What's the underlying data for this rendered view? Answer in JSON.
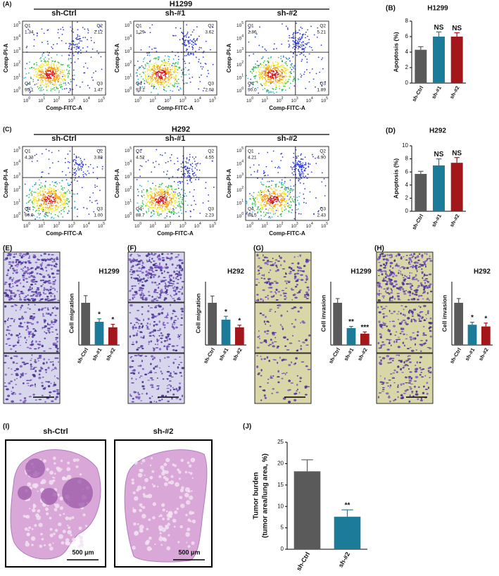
{
  "flow_panels": [
    {
      "panel": "(A)",
      "title": "H1299",
      "x_label": "Comp-FITC-A",
      "y_label": "Comp-PI-A",
      "tick_base": "10",
      "tick_exponents": [
        0,
        1,
        2,
        3,
        4,
        5
      ],
      "quadrant_names": [
        "Q1",
        "Q2",
        "Q3",
        "Q4"
      ],
      "plots": [
        {
          "title": "sh-Ctrl",
          "quadrants": [
            "1.34",
            "2.12",
            "1.47",
            "95.1"
          ]
        },
        {
          "title": "sh-#1",
          "quadrants": [
            "1.29",
            "3.62",
            "2.03",
            "93.1"
          ]
        },
        {
          "title": "sh-#2",
          "quadrants": [
            "2.86",
            "5.21",
            "1.89",
            "90.0"
          ]
        }
      ]
    },
    {
      "panel": "(C)",
      "title": "H292",
      "x_label": "Comp-FITC-A",
      "y_label": "Comp-PI-A",
      "tick_base": "10",
      "tick_exponents": [
        0,
        1,
        2,
        3,
        4,
        5
      ],
      "quadrant_names": [
        "Q1",
        "Q2",
        "Q3",
        "Q4"
      ],
      "plots": [
        {
          "title": "sh-Ctrl",
          "quadrants": [
            "4.23",
            "3.88",
            "1.00",
            "90.9"
          ]
        },
        {
          "title": "sh-#1",
          "quadrants": [
            "4.52",
            "4.55",
            "2.23",
            "88.7"
          ]
        },
        {
          "title": "sh-#2",
          "quadrants": [
            "4.21",
            "4.90",
            "2.43",
            "88.5"
          ]
        }
      ]
    }
  ],
  "chart_data": [
    {
      "type": "bar",
      "panel": "(B)",
      "title": "H1299",
      "y_label": "Apoptosis (%)",
      "categories": [
        "sh-Ctrl",
        "sh-#1",
        "sh-#2"
      ],
      "values": [
        4.3,
        6.0,
        6.0
      ],
      "errors": [
        0.4,
        0.6,
        0.5
      ],
      "annotations": [
        null,
        "NS",
        "NS"
      ],
      "colors": [
        "#5a5a5a",
        "#1b7b99",
        "#a3161a"
      ],
      "ylim": [
        0,
        8
      ],
      "yticks": [
        0,
        2,
        4,
        6,
        8
      ]
    },
    {
      "type": "bar",
      "panel": "(D)",
      "title": "H292",
      "y_label": "Apoptosis (%)",
      "categories": [
        "sh-Ctrl",
        "sh-#1",
        "sh-#2"
      ],
      "values": [
        5.7,
        7.0,
        7.4
      ],
      "errors": [
        0.4,
        1.0,
        0.8
      ],
      "annotations": [
        null,
        "NS",
        "NS"
      ],
      "colors": [
        "#5a5a5a",
        "#1b7b99",
        "#a3161a"
      ],
      "ylim": [
        0,
        10
      ],
      "yticks": [
        0,
        2,
        4,
        6,
        8,
        10
      ]
    },
    {
      "type": "bar",
      "panel": "(E)",
      "title": "H1299",
      "y_label": "Cell migration",
      "categories": [
        "sh-Ctrl",
        "sh-#1",
        "sh-#2"
      ],
      "values": [
        1.0,
        0.55,
        0.42
      ],
      "errors": [
        0.17,
        0.07,
        0.07
      ],
      "annotations": [
        null,
        "*",
        "*"
      ],
      "colors": [
        "#5a5a5a",
        "#1b7b99",
        "#a3161a"
      ],
      "ylim": [
        0,
        1.5
      ]
    },
    {
      "type": "bar",
      "panel": "(F)",
      "title": "H292",
      "y_label": "Cell migration",
      "categories": [
        "sh-Ctrl",
        "sh-#1",
        "sh-#2"
      ],
      "values": [
        1.0,
        0.6,
        0.42
      ],
      "errors": [
        0.16,
        0.08,
        0.05
      ],
      "annotations": [
        null,
        "*",
        "*"
      ],
      "colors": [
        "#5a5a5a",
        "#1b7b99",
        "#a3161a"
      ],
      "ylim": [
        0,
        1.5
      ]
    },
    {
      "type": "bar",
      "panel": "(G)",
      "title": "H1299",
      "y_label": "Cell invasion",
      "categories": [
        "sh-Ctrl",
        "sh-#1",
        "sh-#2"
      ],
      "values": [
        1.0,
        0.4,
        0.27
      ],
      "errors": [
        0.1,
        0.04,
        0.04
      ],
      "annotations": [
        null,
        "**",
        "***"
      ],
      "colors": [
        "#5a5a5a",
        "#1b7b99",
        "#a3161a"
      ],
      "ylim": [
        0,
        1.5
      ]
    },
    {
      "type": "bar",
      "panel": "(H)",
      "title": "H292",
      "y_label": "Cell invasion",
      "categories": [
        "sh-Ctrl",
        "sh-#1",
        "sh-#2"
      ],
      "values": [
        1.0,
        0.48,
        0.44
      ],
      "errors": [
        0.1,
        0.06,
        0.08
      ],
      "annotations": [
        null,
        "*",
        "*"
      ],
      "colors": [
        "#5a5a5a",
        "#1b7b99",
        "#a3161a"
      ],
      "ylim": [
        0,
        1.5
      ]
    },
    {
      "type": "bar",
      "panel": "(J)",
      "y_label": [
        "Tumor burden",
        "(tumor area/lung area, %)"
      ],
      "categories": [
        "sh-Ctrl",
        "sh-#2"
      ],
      "values": [
        18.2,
        7.6
      ],
      "errors": [
        2.7,
        1.6
      ],
      "annotations": [
        null,
        "**"
      ],
      "colors": [
        "#5a5a5a",
        "#1b7b99"
      ],
      "ylim": [
        0,
        25
      ],
      "yticks": [
        0,
        5,
        10,
        15,
        20,
        25
      ]
    }
  ],
  "histology": {
    "panel": "(I)",
    "samples": [
      "sh-Ctrl",
      "sh-#2"
    ],
    "scale_bar": "500 μm"
  }
}
